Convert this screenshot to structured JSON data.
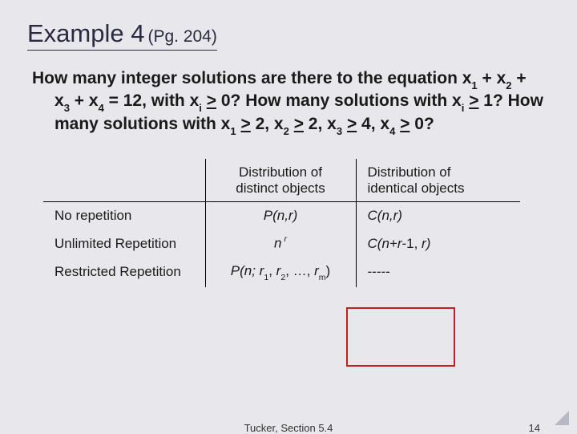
{
  "title": {
    "main": "Example 4",
    "sub": "(Pg. 204)"
  },
  "question": {
    "prefix": "How many integer solutions are there to the equation x",
    "s1": "1",
    "p2": " + x",
    "s2": "2",
    "p3": " + x",
    "s3": "3",
    "p4": " + x",
    "s4": "4",
    "p5": " = 12, with x",
    "si": "i",
    "p6": " ",
    "ge1": ">",
    "p7": " 0?  How many solutions with  x",
    "si2": "i",
    "p8": " ",
    "ge2": ">",
    "p9": " 1?  How many solutions with x",
    "sa": "1",
    "p10": " ",
    "ge3": ">",
    "p11": " 2,  x",
    "sb": "2",
    "p12": " ",
    "ge4": ">",
    "p13": " 2, x",
    "sc": "3",
    "p14": " ",
    "ge5": ">",
    "p15": " 4, x",
    "sd": "4",
    "p16": " ",
    "ge6": ">",
    "p17": " 0?"
  },
  "table": {
    "headers": {
      "col2a": "Distribution of",
      "col2b": "distinct objects",
      "col3a": "Distribution of",
      "col3b": "identical objects"
    },
    "rows": [
      {
        "label": "No repetition",
        "distinct_pre": "P(n,",
        "distinct_post": "r)",
        "identical_pre": "C(n,",
        "identical_post": "r)"
      },
      {
        "label": "Unlimited Repetition",
        "distinct_base": "n",
        "distinct_exp": " r",
        "identical_pre": "C(n+r",
        "identical_mid": "-1,",
        "identical_post": " r)"
      },
      {
        "label": "Restricted Repetition",
        "distinct_pre": "P(n; ",
        "distinct_r1": "r",
        "distinct_s1": "1",
        "distinct_c1": ", ",
        "distinct_r2": "r",
        "distinct_s2": "2",
        "distinct_c2": ", …, ",
        "distinct_rm": "r",
        "distinct_sm": "m",
        "distinct_end": ")",
        "identical": "-----"
      }
    ]
  },
  "footer": {
    "center": "Tucker, Section 5.4",
    "page": "14"
  },
  "style": {
    "highlight_border": "#c02020",
    "background": "#e8e8ec"
  }
}
